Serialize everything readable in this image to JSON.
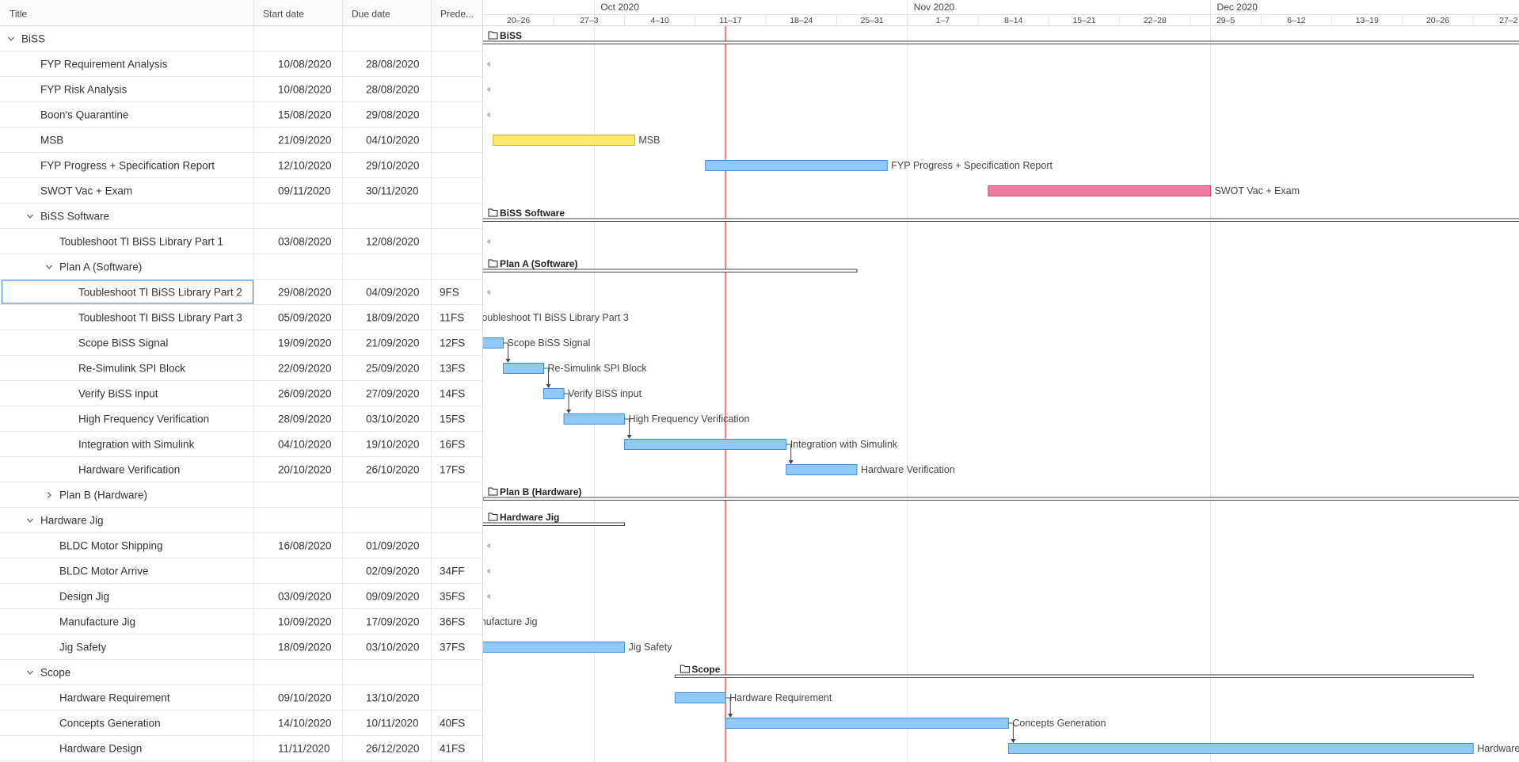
{
  "header": {
    "columns": [
      "Title",
      "Start date",
      "Due date",
      "Prede..."
    ]
  },
  "timeline": {
    "months": [
      "Oct 2020",
      "Nov 2020",
      "Dec 2020"
    ],
    "weeks": [
      "20–26",
      "27–3",
      "4–10",
      "11–17",
      "18–24",
      "25–31",
      "1–7",
      "8–14",
      "15–21",
      "22–28",
      "29–5",
      "6–12",
      "13–19",
      "20–26",
      "27–2"
    ]
  },
  "rows": [
    {
      "title": "BiSS",
      "level": 0,
      "group": true,
      "expanded": true
    },
    {
      "title": "FYP Requirement Analysis",
      "level": 1,
      "start": "10/08/2020",
      "due": "28/08/2020"
    },
    {
      "title": "FYP Risk Analysis",
      "level": 1,
      "start": "10/08/2020",
      "due": "28/08/2020"
    },
    {
      "title": "Boon's Quarantine",
      "level": 1,
      "start": "15/08/2020",
      "due": "29/08/2020"
    },
    {
      "title": "MSB",
      "level": 1,
      "start": "21/09/2020",
      "due": "04/10/2020",
      "color": "#fde870"
    },
    {
      "title": "FYP Progress + Specification Report",
      "level": 1,
      "start": "12/10/2020",
      "due": "29/10/2020"
    },
    {
      "title": "SWOT Vac + Exam",
      "level": 1,
      "start": "09/11/2020",
      "due": "30/11/2020",
      "color": "#f07ca2"
    },
    {
      "title": "BiSS Software",
      "level": 1,
      "group": true,
      "expanded": true
    },
    {
      "title": "Toubleshoot TI BiSS Library Part 1",
      "level": 2,
      "start": "03/08/2020",
      "due": "12/08/2020"
    },
    {
      "title": "Plan A (Software)",
      "level": 2,
      "group": true,
      "expanded": true
    },
    {
      "title": "Toubleshoot TI BiSS Library Part 2",
      "level": 3,
      "start": "29/08/2020",
      "due": "04/09/2020",
      "pred": "9FS",
      "selected": true
    },
    {
      "title": "Toubleshoot TI BiSS Library Part 3",
      "level": 3,
      "start": "05/09/2020",
      "due": "18/09/2020",
      "pred": "11FS"
    },
    {
      "title": "Scope BiSS Signal",
      "level": 3,
      "start": "19/09/2020",
      "due": "21/09/2020",
      "pred": "12FS"
    },
    {
      "title": "Re-Simulink SPI Block",
      "level": 3,
      "start": "22/09/2020",
      "due": "25/09/2020",
      "pred": "13FS"
    },
    {
      "title": "Verify BiSS input",
      "level": 3,
      "start": "26/09/2020",
      "due": "27/09/2020",
      "pred": "14FS"
    },
    {
      "title": "High Frequency Verification",
      "level": 3,
      "start": "28/09/2020",
      "due": "03/10/2020",
      "pred": "15FS"
    },
    {
      "title": "Integration with Simulink",
      "level": 3,
      "start": "04/10/2020",
      "due": "19/10/2020",
      "pred": "16FS"
    },
    {
      "title": "Hardware Verification",
      "level": 3,
      "start": "20/10/2020",
      "due": "26/10/2020",
      "pred": "17FS"
    },
    {
      "title": "Plan B (Hardware)",
      "level": 2,
      "group": true,
      "expanded": false
    },
    {
      "title": "Hardware Jig",
      "level": 1,
      "group": true,
      "expanded": true
    },
    {
      "title": "BLDC Motor Shipping",
      "level": 2,
      "start": "16/08/2020",
      "due": "01/09/2020"
    },
    {
      "title": "BLDC Motor Arrive",
      "level": 2,
      "due": "02/09/2020",
      "pred": "34FF"
    },
    {
      "title": "Design Jig",
      "level": 2,
      "start": "03/09/2020",
      "due": "09/09/2020",
      "pred": "35FS"
    },
    {
      "title": "Manufacture Jig",
      "level": 2,
      "start": "10/09/2020",
      "due": "17/09/2020",
      "pred": "36FS"
    },
    {
      "title": "Jig Safety",
      "level": 2,
      "start": "18/09/2020",
      "due": "03/10/2020",
      "pred": "37FS"
    },
    {
      "title": "Scope",
      "level": 1,
      "group": true,
      "expanded": true
    },
    {
      "title": "Hardware Requirement",
      "level": 2,
      "start": "09/10/2020",
      "due": "13/10/2020"
    },
    {
      "title": "Concepts Generation",
      "level": 2,
      "start": "14/10/2020",
      "due": "10/11/2020",
      "pred": "40FS"
    },
    {
      "title": "Hardware Design",
      "level": 2,
      "start": "11/11/2020",
      "due": "26/12/2020",
      "pred": "41FS"
    }
  ]
}
